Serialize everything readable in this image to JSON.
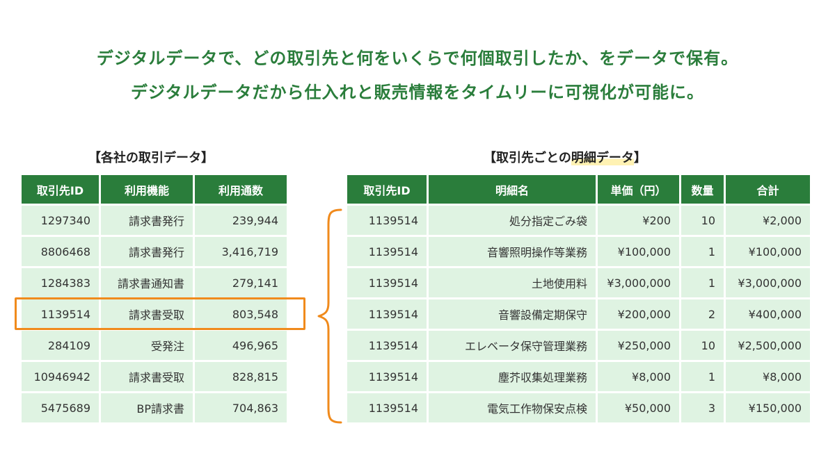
{
  "headlines": [
    "デジタルデータで、どの取引先と何をいくらで何個取引したか、をデータで保有。",
    "デジタルデータだから仕入れと販売情報をタイムリーに可視化が可能に。"
  ],
  "left_table": {
    "caption": "【各社の取引データ】",
    "headers": [
      "取引先ID",
      "利用機能",
      "利用通数"
    ],
    "rows": [
      [
        "1297340",
        "請求書発行",
        "239,944"
      ],
      [
        "8806468",
        "請求書発行",
        "3,416,719"
      ],
      [
        "1284383",
        "請求書通知書",
        "279,141"
      ],
      [
        "1139514",
        "請求書受取",
        "803,548"
      ],
      [
        "284109",
        "受発注",
        "496,965"
      ],
      [
        "10946942",
        "請求書受取",
        "828,815"
      ],
      [
        "5475689",
        "BP請求書",
        "704,863"
      ]
    ]
  },
  "right_table": {
    "caption_prefix": "【取引先ごとの",
    "caption_highlight": "明細データ",
    "caption_suffix": "】",
    "headers": [
      "取引先ID",
      "明細名",
      "単価（円）",
      "数量",
      "合計"
    ],
    "rows": [
      [
        "1139514",
        "処分指定ごみ袋",
        "¥200",
        "10",
        "¥2,000"
      ],
      [
        "1139514",
        "音響照明操作等業務",
        "¥100,000",
        "1",
        "¥100,000"
      ],
      [
        "1139514",
        "土地使用料",
        "¥3,000,000",
        "1",
        "¥3,000,000"
      ],
      [
        "1139514",
        "音響設備定期保守",
        "¥200,000",
        "2",
        "¥400,000"
      ],
      [
        "1139514",
        "エレベータ保守管理業務",
        "¥250,000",
        "10",
        "¥2,500,000"
      ],
      [
        "1139514",
        "塵芥収集処理業務",
        "¥8,000",
        "1",
        "¥8,000"
      ],
      [
        "1139514",
        "電気工作物保安点検",
        "¥50,000",
        "3",
        "¥150,000"
      ]
    ]
  },
  "colors": {
    "accent_green": "#2a7d3b",
    "cell_green": "#dff3e2",
    "highlight_orange": "#f08a1c",
    "marker_yellow": "#fff2b3"
  }
}
